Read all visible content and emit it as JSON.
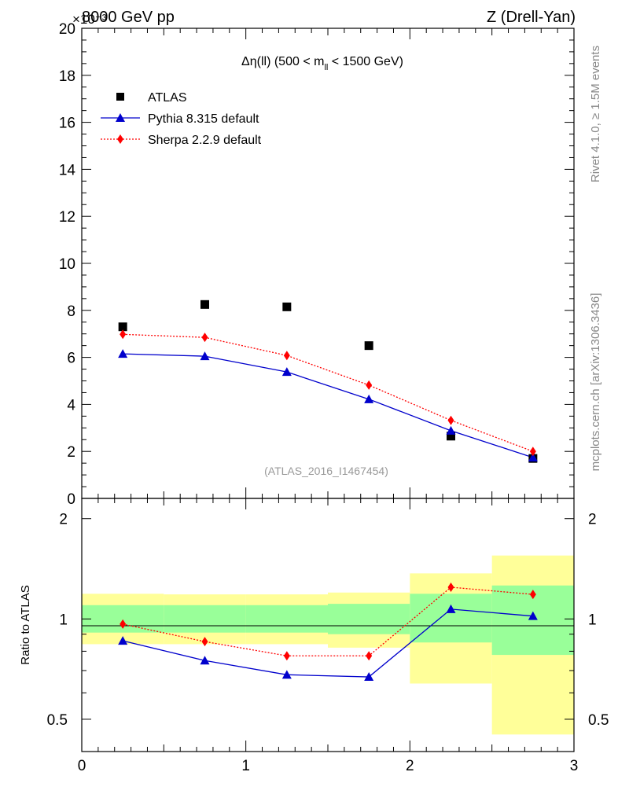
{
  "header": {
    "energy": "8000 GeV pp",
    "process": "Z (Drell-Yan)",
    "exponent": "×10⁻³"
  },
  "side_labels": {
    "rivet": "Rivet 4.1.0, ≥ 1.5M events",
    "mcplots": "mcplots.cern.ch [arXiv:1306.3436]"
  },
  "chart_data": {
    "type": "line",
    "title": "Δη(ll) (500 < m_ll < 1500 GeV)",
    "title_parts": {
      "main": "Δη(ll) (500 < m",
      "sub": "ll",
      "tail": " < 1500 GeV)"
    },
    "watermark": "(ATLAS_2016_I1467454)",
    "xlabel": "",
    "ylabel_ratio": "Ratio to ATLAS",
    "xlim": [
      0,
      3
    ],
    "ylim_main": [
      0,
      20
    ],
    "ylim_ratio": [
      0.4,
      2.3
    ],
    "x_ticks": [
      "0",
      "1",
      "2",
      "3"
    ],
    "y_ticks_main": [
      "2",
      "4",
      "6",
      "8",
      "10",
      "12",
      "14",
      "16",
      "18",
      "20"
    ],
    "y_tick_zero": "0",
    "y_ticks_ratio": [
      "0.5",
      "1",
      "2"
    ],
    "bins": [
      [
        0,
        0.5
      ],
      [
        0.5,
        1.0
      ],
      [
        1.0,
        1.5
      ],
      [
        1.5,
        2.0
      ],
      [
        2.0,
        2.5
      ],
      [
        2.5,
        3.0
      ]
    ],
    "x": [
      0.25,
      0.75,
      1.25,
      1.75,
      2.25,
      2.75
    ],
    "series": [
      {
        "name": "ATLAS",
        "marker": "square",
        "color": "#000000",
        "values": [
          7.3,
          8.25,
          8.15,
          6.5,
          2.65,
          1.7
        ]
      },
      {
        "name": "Pythia 8.315 default",
        "marker": "triangle",
        "color": "#0000cc",
        "values": [
          6.15,
          6.05,
          5.38,
          4.22,
          2.88,
          1.74
        ]
      },
      {
        "name": "Sherpa 2.2.9 default",
        "marker": "diamond",
        "color": "#ff0000",
        "values": [
          6.98,
          6.85,
          6.08,
          4.82,
          3.32,
          2.0
        ]
      }
    ],
    "ratio": {
      "pythia": [
        0.86,
        0.75,
        0.68,
        0.67,
        1.07,
        1.02
      ],
      "sherpa": [
        0.965,
        0.855,
        0.775,
        0.775,
        1.245,
        1.185
      ],
      "band_inner": [
        [
          0.91,
          1.1
        ],
        [
          0.91,
          1.1
        ],
        [
          0.91,
          1.1
        ],
        [
          0.9,
          1.11
        ],
        [
          0.85,
          1.19
        ],
        [
          0.78,
          1.26
        ]
      ],
      "band_outer": [
        [
          0.84,
          1.19
        ],
        [
          0.84,
          1.185
        ],
        [
          0.84,
          1.185
        ],
        [
          0.82,
          1.2
        ],
        [
          0.64,
          1.37
        ],
        [
          0.45,
          1.55
        ]
      ]
    }
  },
  "colors": {
    "band_inner": "#99ff99",
    "band_outer": "#ffff99",
    "axis": "#000000",
    "side_text": "#888888"
  }
}
